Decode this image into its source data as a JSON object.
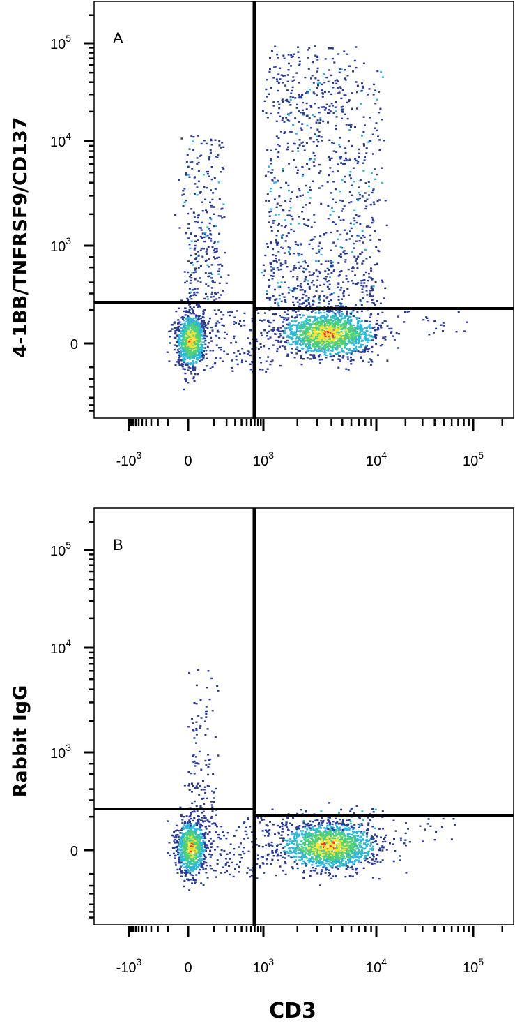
{
  "figure": {
    "xlabel": "CD3",
    "colors": {
      "low": "#2b3b94",
      "mid": "#2fb7d6",
      "mid2": "#4fcf7a",
      "high": "#f1e33a",
      "peak": "#e8342a",
      "axis": "#000000"
    }
  },
  "chart_data": [
    {
      "type": "scatter",
      "panel": "A",
      "ylabel": "4-1BB/TNFRSF9/CD137",
      "x_scale": "logicle",
      "y_scale": "logicle",
      "x_ticks": [
        {
          "value": -1000,
          "base": "-10",
          "exp": "3"
        },
        {
          "value": 0,
          "base": "0",
          "exp": ""
        },
        {
          "value": 1000,
          "base": "10",
          "exp": "3"
        },
        {
          "value": 10000,
          "base": "10",
          "exp": "4"
        },
        {
          "value": 100000,
          "base": "10",
          "exp": "5"
        }
      ],
      "y_ticks": [
        {
          "value": 0,
          "base": "0",
          "exp": ""
        },
        {
          "value": 1000,
          "base": "10",
          "exp": "3"
        },
        {
          "value": 10000,
          "base": "10",
          "exp": "4"
        },
        {
          "value": 100000,
          "base": "10",
          "exp": "5"
        }
      ],
      "quadrant_gates": {
        "x_threshold": 800,
        "y_threshold_left": 320,
        "y_threshold_right": 260
      },
      "populations": [
        {
          "name": "CD3- 4-1BB-",
          "x_center": 80,
          "y_center": 60,
          "density": "high"
        },
        {
          "name": "CD3+ 4-1BB-",
          "x_center": 3500,
          "y_center": 80,
          "density": "high"
        },
        {
          "name": "CD3+ 4-1BB+",
          "x_range": [
            1000,
            10000
          ],
          "y_range": [
            300,
            60000
          ],
          "density": "low"
        },
        {
          "name": "CD3- 4-1BB+",
          "x_range": [
            -100,
            300
          ],
          "y_range": [
            300,
            10000
          ],
          "density": "low"
        }
      ]
    },
    {
      "type": "scatter",
      "panel": "B",
      "ylabel": "Rabbit IgG",
      "x_scale": "logicle",
      "y_scale": "logicle",
      "x_ticks": [
        {
          "value": -1000,
          "base": "-10",
          "exp": "3"
        },
        {
          "value": 0,
          "base": "0",
          "exp": ""
        },
        {
          "value": 1000,
          "base": "10",
          "exp": "3"
        },
        {
          "value": 10000,
          "base": "10",
          "exp": "4"
        },
        {
          "value": 100000,
          "base": "10",
          "exp": "5"
        }
      ],
      "y_ticks": [
        {
          "value": 0,
          "base": "0",
          "exp": ""
        },
        {
          "value": 1000,
          "base": "10",
          "exp": "3"
        },
        {
          "value": 10000,
          "base": "10",
          "exp": "4"
        },
        {
          "value": 100000,
          "base": "10",
          "exp": "5"
        }
      ],
      "quadrant_gates": {
        "x_threshold": 800,
        "y_threshold_left": 320,
        "y_threshold_right": 260
      },
      "populations": [
        {
          "name": "CD3- IgG-",
          "x_center": 80,
          "y_center": 60,
          "density": "high"
        },
        {
          "name": "CD3+ IgG-",
          "x_center": 3500,
          "y_center": 60,
          "density": "high"
        },
        {
          "name": "CD3- IgG+",
          "x_range": [
            -100,
            300
          ],
          "y_range": [
            300,
            5000
          ],
          "density": "very low"
        }
      ]
    }
  ]
}
